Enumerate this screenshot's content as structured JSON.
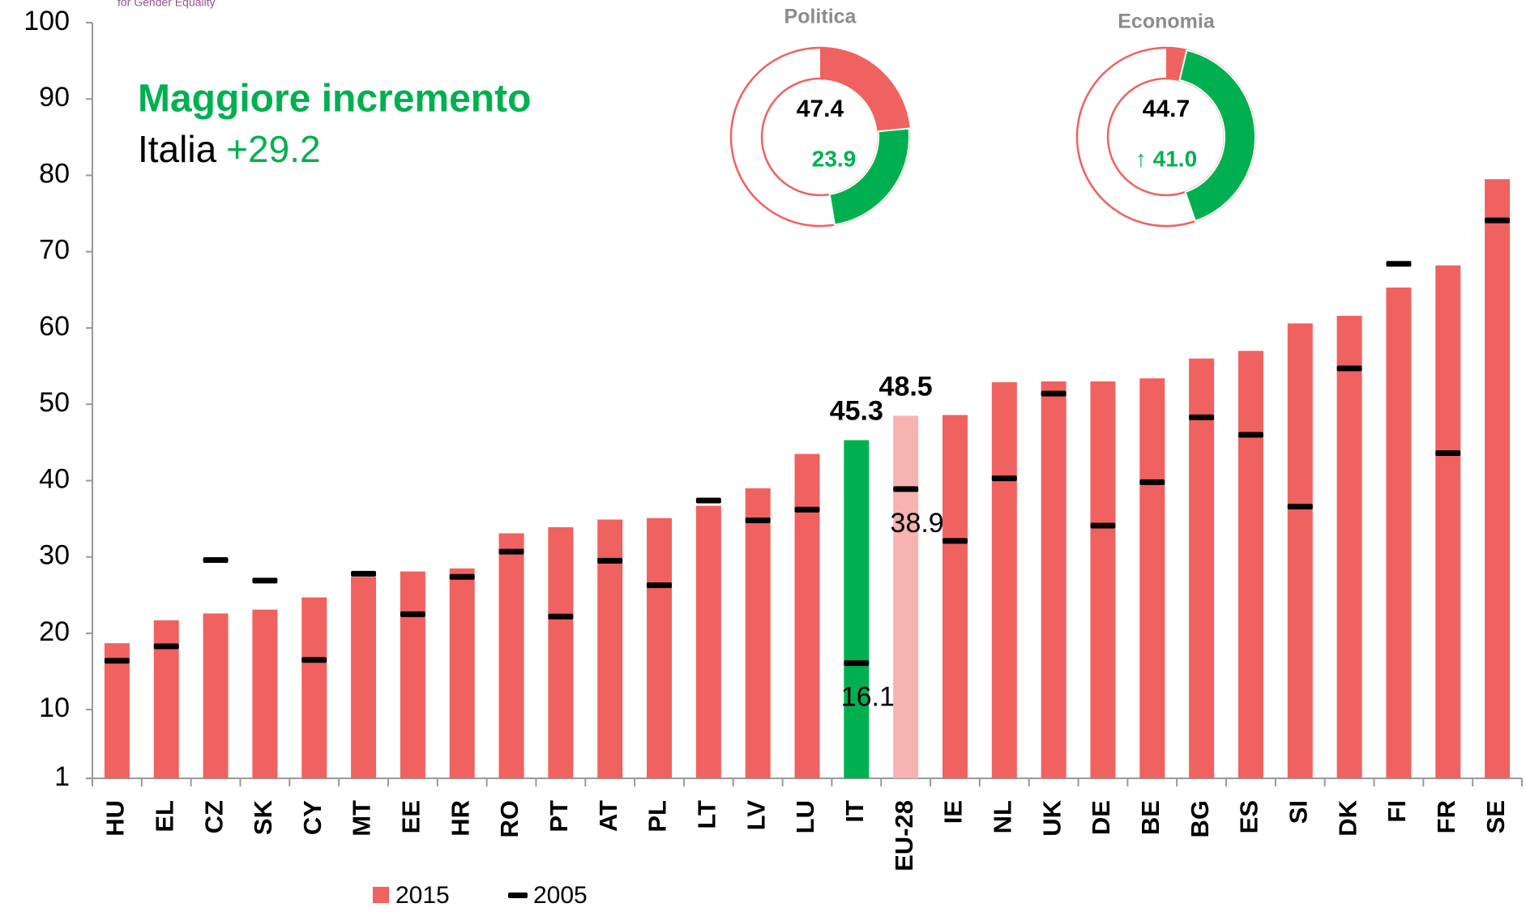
{
  "chart_data": {
    "type": "bar",
    "header": "for Gender Equality",
    "headline": "Maggiore incremento",
    "subline": {
      "country": "Italia",
      "change": "+29.2"
    },
    "categories": [
      "HU",
      "EL",
      "CZ",
      "SK",
      "CY",
      "MT",
      "EE",
      "HR",
      "RO",
      "PT",
      "AT",
      "PL",
      "LT",
      "LV",
      "LU",
      "IT",
      "EU-28",
      "IE",
      "NL",
      "UK",
      "DE",
      "BE",
      "BG",
      "ES",
      "SI",
      "DK",
      "FI",
      "FR",
      "SE"
    ],
    "series": [
      {
        "name": "2015",
        "color": "#f0625f",
        "highlight": {
          "IT": "#00b050",
          "EU-28": "#f7b3b1"
        },
        "values": [
          18.7,
          21.7,
          22.6,
          23.1,
          24.7,
          27.4,
          28.1,
          28.5,
          33.1,
          33.9,
          34.9,
          35.1,
          36.7,
          39.0,
          43.5,
          45.3,
          48.5,
          48.6,
          52.9,
          53.0,
          53.0,
          53.4,
          56.0,
          57.0,
          60.6,
          61.6,
          65.3,
          68.2,
          79.5
        ]
      },
      {
        "name": "2005",
        "color": "#000000",
        "values": [
          16.4,
          18.3,
          29.6,
          26.9,
          16.5,
          27.8,
          22.5,
          27.4,
          30.7,
          22.2,
          29.5,
          26.3,
          37.4,
          34.8,
          36.2,
          16.1,
          38.9,
          32.1,
          40.3,
          51.4,
          34.1,
          39.8,
          48.3,
          46.0,
          36.6,
          54.7,
          68.4,
          43.6,
          74.1
        ]
      }
    ],
    "labeled": [
      "IT",
      "EU-28"
    ],
    "ylim": [
      1,
      100
    ],
    "yticks": [
      1,
      10,
      20,
      30,
      40,
      50,
      60,
      70,
      80,
      90,
      100
    ],
    "donuts": [
      {
        "title": "Politica",
        "total": 47.4,
        "change": 23.9,
        "change_label": "23.9"
      },
      {
        "title": "Economia",
        "total": 44.7,
        "change": 41.0,
        "change_label": "↑ 41.0"
      }
    ]
  }
}
